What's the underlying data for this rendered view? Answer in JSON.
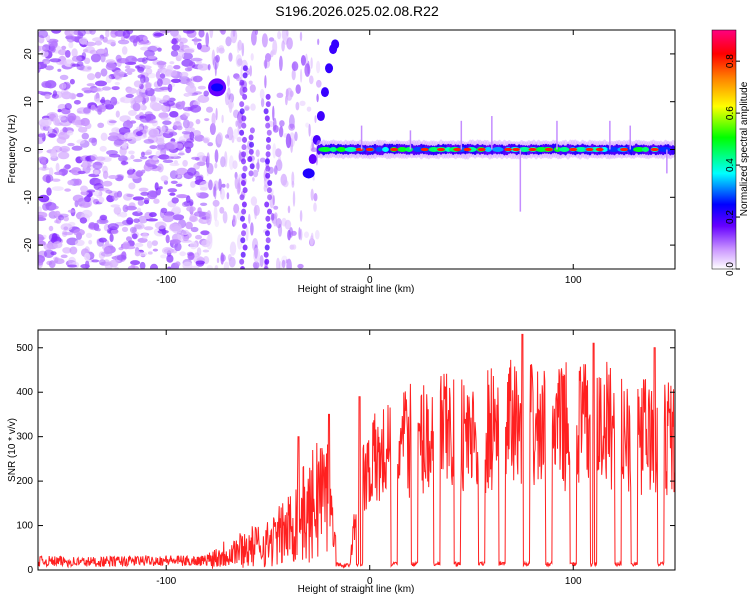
{
  "title": "S196.2026.025.02.08.R22",
  "chart_data": [
    {
      "type": "heatmap",
      "title": "S196.2026.025.02.08.R22",
      "xlabel": "Height of straight line (km)",
      "ylabel": "Frequency (Hz)",
      "xlim": [
        -163,
        150
      ],
      "ylim": [
        -25,
        25
      ],
      "xticks": [
        -100,
        0,
        100
      ],
      "yticks": [
        -20,
        -10,
        0,
        10,
        20
      ],
      "colorbar": {
        "label": "Normalized spectral amplitude",
        "range": [
          0,
          0.92
        ],
        "ticks": [
          0.0,
          0.2,
          0.4,
          0.6,
          0.8
        ],
        "colormap": [
          "#ffffff",
          "#cc99ff",
          "#6600ff",
          "#0000ff",
          "#00ffff",
          "#00ff00",
          "#ffff00",
          "#ff8000",
          "#ff0000",
          "#ff0080"
        ]
      },
      "features": [
        {
          "name": "noise",
          "x_range": [
            -163,
            -80
          ],
          "freq_range": [
            -25,
            25
          ],
          "amplitude": 0.1
        },
        {
          "name": "rising-trace",
          "points": [
            [
              -25,
              -5
            ],
            [
              -22,
              0
            ],
            [
              -20,
              10
            ],
            [
              -18,
              20
            ],
            [
              -17,
              22
            ]
          ],
          "amplitude": 0.3
        },
        {
          "name": "dc-band",
          "x_range": [
            -25,
            150
          ],
          "freq": 0,
          "amplitude": 0.5
        },
        {
          "name": "blob",
          "x": -75,
          "freq": 13,
          "amplitude": 0.3
        }
      ]
    },
    {
      "type": "line",
      "xlabel": "Height of straight line (km)",
      "ylabel": "SNR (10 * v/v)",
      "xlim": [
        -163,
        150
      ],
      "ylim": [
        0,
        540
      ],
      "xticks": [
        -100,
        0,
        100
      ],
      "yticks": [
        0,
        100,
        200,
        300,
        400,
        500
      ],
      "series": [
        {
          "name": "SNR",
          "color": "#ff2020",
          "x": [
            -160,
            -140,
            -120,
            -100,
            -90,
            -80,
            -70,
            -60,
            -50,
            -40,
            -35,
            -30,
            -25,
            -20,
            -15,
            -10,
            -5,
            0,
            5,
            10,
            20,
            30,
            40,
            50,
            60,
            70,
            80,
            90,
            100,
            110,
            120,
            130,
            140,
            150
          ],
          "y": [
            20,
            18,
            20,
            22,
            20,
            22,
            40,
            50,
            60,
            90,
            130,
            120,
            180,
            160,
            10,
            10,
            200,
            240,
            250,
            270,
            290,
            300,
            310,
            300,
            320,
            330,
            320,
            310,
            330,
            320,
            330,
            310,
            300,
            300
          ],
          "peaks": [
            [
              -35,
              300
            ],
            [
              -20,
              350
            ],
            [
              -5,
              390
            ],
            [
              75,
              530
            ],
            [
              110,
              510
            ],
            [
              140,
              500
            ]
          ],
          "dropouts": [
            -15,
            -5,
            12,
            22,
            33,
            43,
            55,
            65,
            77,
            88,
            100,
            110,
            122,
            130,
            143
          ]
        }
      ]
    }
  ]
}
